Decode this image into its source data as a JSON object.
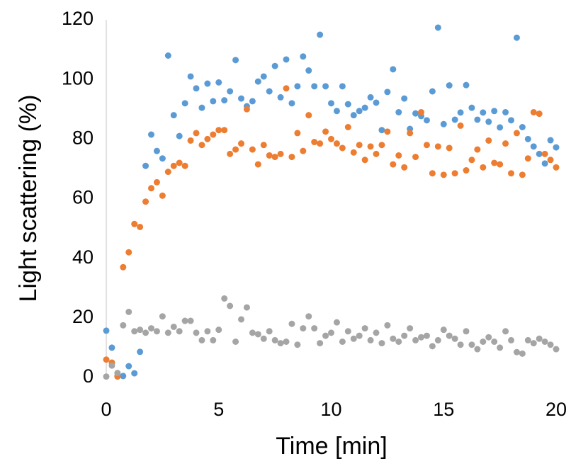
{
  "chart_data": {
    "type": "scatter",
    "xlabel": "Time [min]",
    "ylabel": "Light scattering (%)",
    "x": [
      0,
      0.25,
      0.5,
      0.75,
      1,
      1.25,
      1.5,
      1.75,
      2,
      2.25,
      2.5,
      2.75,
      3,
      3.25,
      3.5,
      3.75,
      4,
      4.25,
      4.5,
      4.75,
      5,
      5.25,
      5.5,
      5.75,
      6,
      6.25,
      6.5,
      6.75,
      7,
      7.25,
      7.5,
      7.75,
      8,
      8.25,
      8.5,
      8.75,
      9,
      9.25,
      9.5,
      9.75,
      10,
      10.25,
      10.5,
      10.75,
      11,
      11.25,
      11.5,
      11.75,
      12,
      12.25,
      12.5,
      12.75,
      13,
      13.25,
      13.5,
      13.75,
      14,
      14.25,
      14.5,
      14.75,
      15,
      15.25,
      15.5,
      15.75,
      16,
      16.25,
      16.5,
      16.75,
      17,
      17.25,
      17.5,
      17.75,
      18,
      18.25,
      18.5,
      18.75,
      19,
      19.25,
      19.5,
      19.75,
      20
    ],
    "series": [
      {
        "color": "#5b9bd5",
        "values": [
          15.7,
          10,
          0.5,
          0.5,
          3.8,
          1.4,
          8.6,
          71,
          81.5,
          76,
          73.5,
          108,
          88,
          81,
          92,
          101,
          97,
          90.5,
          98.6,
          92.7,
          99,
          93,
          96,
          106.5,
          93.6,
          91,
          92.7,
          99.3,
          101,
          96,
          104.5,
          94,
          106.7,
          92,
          97.7,
          107.7,
          103,
          97.7,
          115,
          97.7,
          92,
          89.4,
          97.7,
          91.7,
          88,
          89.4,
          90.5,
          94,
          92.2,
          83,
          95.8,
          103.4,
          89,
          93.6,
          83.4,
          88.6,
          87.7,
          86.3,
          96,
          117.4,
          85,
          98,
          86.5,
          88.9,
          98.1,
          90.5,
          86.5,
          88.9,
          85.8,
          89.4,
          83.9,
          89,
          86.3,
          114,
          84,
          80,
          77.5,
          75,
          71.8,
          79.6,
          77.2
        ]
      },
      {
        "color": "#ed7d31",
        "values": [
          6,
          5,
          0.3,
          37,
          42,
          51.5,
          50.5,
          59,
          63.5,
          65.5,
          61,
          69,
          71,
          72,
          71,
          79.5,
          82,
          78,
          80,
          81.5,
          83,
          83,
          75,
          76.5,
          78.5,
          90,
          76.5,
          71.5,
          78,
          74.5,
          74,
          75,
          97,
          74,
          82,
          76,
          88,
          79,
          78.5,
          82.5,
          80,
          78.5,
          77,
          84,
          75.5,
          78,
          73,
          77.5,
          75,
          78,
          82.5,
          71.5,
          74.5,
          70.5,
          82,
          74,
          89,
          78,
          68.5,
          77.5,
          68,
          77,
          68.5,
          84.5,
          69.5,
          73,
          76.5,
          70.5,
          79.5,
          72,
          71.5,
          78.5,
          68.5,
          82,
          68,
          73.5,
          89,
          88.5,
          75,
          73,
          70.5
        ]
      },
      {
        "color": "#a5a5a5",
        "values": [
          0.3,
          4,
          1.5,
          17.5,
          22,
          15.5,
          16,
          15,
          16.5,
          15.5,
          20.5,
          15,
          17,
          15.5,
          19,
          19,
          15,
          12.5,
          15.5,
          12.5,
          16,
          26.5,
          24,
          12,
          19.5,
          23.5,
          15,
          14.5,
          13,
          15.5,
          12.5,
          11.5,
          12,
          18,
          11,
          16.5,
          20.5,
          16.5,
          11.5,
          14,
          15,
          18.5,
          12,
          15.5,
          13,
          14,
          16.5,
          12.5,
          15,
          11.5,
          17.5,
          13,
          12,
          14,
          16.5,
          12.5,
          13.5,
          14,
          10.5,
          12.5,
          16,
          14,
          13,
          11,
          15.5,
          11,
          9.5,
          12,
          13.5,
          12,
          10,
          15.5,
          12.5,
          8.5,
          8,
          12.5,
          11.5,
          13,
          12,
          11,
          9.5
        ]
      }
    ],
    "xlim": [
      0,
      20
    ],
    "xticks": [
      0,
      5,
      10,
      15,
      20
    ],
    "ylim": [
      0,
      120
    ],
    "yticks": [
      0,
      20,
      40,
      60,
      80,
      100,
      120
    ]
  }
}
